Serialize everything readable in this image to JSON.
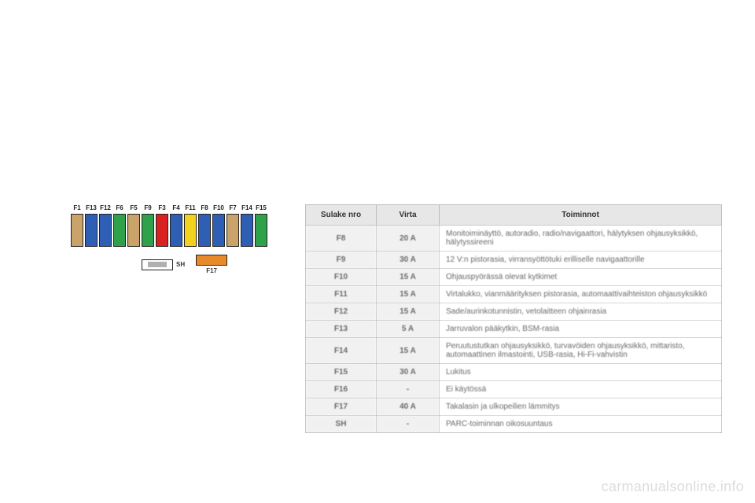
{
  "diagram": {
    "fuses": [
      {
        "label": "F1",
        "color": "#c9a36a"
      },
      {
        "label": "F13",
        "color": "#2f5fb5"
      },
      {
        "label": "F12",
        "color": "#2f5fb5"
      },
      {
        "label": "F6",
        "color": "#2fa14a"
      },
      {
        "label": "F5",
        "color": "#c9a36a"
      },
      {
        "label": "F9",
        "color": "#2fa14a"
      },
      {
        "label": "F3",
        "color": "#d92121"
      },
      {
        "label": "F4",
        "color": "#2f5fb5"
      },
      {
        "label": "F11",
        "color": "#f2d21b"
      },
      {
        "label": "F8",
        "color": "#2f5fb5"
      },
      {
        "label": "F10",
        "color": "#2f5fb5"
      },
      {
        "label": "F7",
        "color": "#c9a36a"
      },
      {
        "label": "F14",
        "color": "#2f5fb5"
      },
      {
        "label": "F15",
        "color": "#2fa14a"
      }
    ],
    "sh_label": "SH",
    "sh_fill": "#b0b0b0",
    "f17_label": "F17",
    "f17_fill": "#e98a2a"
  },
  "table": {
    "headers": [
      "Sulake nro",
      "Virta",
      "Toiminnot"
    ],
    "rows": [
      {
        "n": "F8",
        "a": "20 A",
        "d": "Monitoiminäyttö, autoradio, radio/navigaattori, hälytyksen ohjausyksikkö, hälytyssireeni"
      },
      {
        "n": "F9",
        "a": "30 A",
        "d": "12 V:n pistorasia, virransyöttötuki erilliselle navigaattorille"
      },
      {
        "n": "F10",
        "a": "15 A",
        "d": "Ohjauspyörässä olevat kytkimet"
      },
      {
        "n": "F11",
        "a": "15 A",
        "d": "Virtalukko, vianmäärityksen pistorasia, automaattivaihteiston ohjausyksikkö"
      },
      {
        "n": "F12",
        "a": "15 A",
        "d": "Sade/aurinkotunnistin, vetolaitteen ohjainrasia"
      },
      {
        "n": "F13",
        "a": "5 A",
        "d": "Jarruvalon pääkytkin, BSM-rasia"
      },
      {
        "n": "F14",
        "a": "15 A",
        "d": "Peruutustutkan ohjausyksikkö, turvavöiden ohjausyksikkö, mittaristo, automaattinen ilmastointi, USB-rasia, Hi-Fi-vahvistin"
      },
      {
        "n": "F15",
        "a": "30 A",
        "d": "Lukitus"
      },
      {
        "n": "F16",
        "a": "-",
        "d": "Ei käytössä"
      },
      {
        "n": "F17",
        "a": "40 A",
        "d": "Takalasin ja ulkopeilien lämmitys"
      },
      {
        "n": "SH",
        "a": "-",
        "d": "PARC-toiminnan oikosuuntaus"
      }
    ]
  },
  "watermark": "carmanualsonline.info"
}
